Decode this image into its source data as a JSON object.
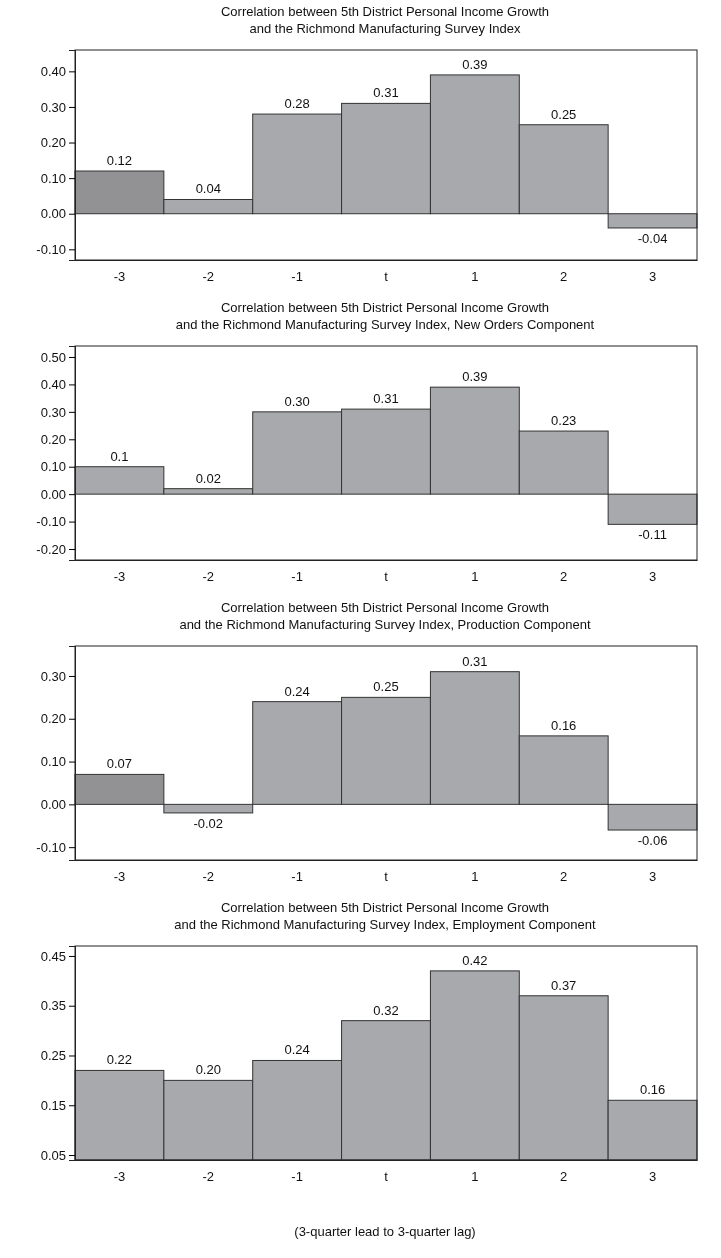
{
  "chart_data": [
    {
      "type": "bar",
      "title": "Correlation between 5th District Personal Income Growth\nand the Richmond Manufacturing Survey Index",
      "categories": [
        "-3",
        "-2",
        "-1",
        "t",
        "1",
        "2",
        "3"
      ],
      "values": [
        0.12,
        0.04,
        0.28,
        0.31,
        0.39,
        0.25,
        -0.04
      ],
      "value_labels": [
        "0.12",
        "0.04",
        "0.28",
        "0.31",
        "0.39",
        "0.25",
        "-0.04"
      ],
      "colors": [
        "#929294",
        "#a7a9ac",
        "#a7a9ac",
        "#a7a9ac",
        "#a7a9ac",
        "#a7a9ac",
        "#a7a9ac"
      ],
      "ylim": [
        -0.13,
        0.46
      ],
      "yticks": [
        {
          "value": -0.1,
          "label": "-0.10"
        },
        {
          "value": 0,
          "label": "0.00"
        },
        {
          "value": 0.1,
          "label": "0.10"
        },
        {
          "value": 0.2,
          "label": "0.20"
        },
        {
          "value": 0.3,
          "label": "0.30"
        },
        {
          "value": 0.4,
          "label": "0.40"
        }
      ],
      "grid": false
    },
    {
      "type": "bar",
      "title": "Correlation between 5th District Personal Income Growth\nand the Richmond Manufacturing Survey Index, New Orders Component",
      "categories": [
        "-3",
        "-2",
        "-1",
        "t",
        "1",
        "2",
        "3"
      ],
      "values": [
        0.1,
        0.02,
        0.3,
        0.31,
        0.39,
        0.23,
        -0.11
      ],
      "value_labels": [
        "0.1",
        "0.02",
        "0.30",
        "0.31",
        "0.39",
        "0.23",
        "-0.11"
      ],
      "colors": [
        "#a7a9ac",
        "#a7a9ac",
        "#a7a9ac",
        "#a7a9ac",
        "#a7a9ac",
        "#a7a9ac",
        "#a7a9ac"
      ],
      "ylim": [
        -0.24,
        0.54
      ],
      "yticks": [
        {
          "value": -0.2,
          "label": "-0.20"
        },
        {
          "value": -0.1,
          "label": "-0.10"
        },
        {
          "value": 0,
          "label": "0.00"
        },
        {
          "value": 0.1,
          "label": "0.10"
        },
        {
          "value": 0.2,
          "label": "0.20"
        },
        {
          "value": 0.3,
          "label": "0.30"
        },
        {
          "value": 0.4,
          "label": "0.40"
        },
        {
          "value": 0.5,
          "label": "0.50"
        }
      ],
      "grid": false
    },
    {
      "type": "bar",
      "title": "Correlation between 5th District Personal Income Growth\nand the Richmond Manufacturing Survey Index, Production Component",
      "categories": [
        "-3",
        "-2",
        "-1",
        "t",
        "1",
        "2",
        "3"
      ],
      "values": [
        0.07,
        -0.02,
        0.24,
        0.25,
        0.31,
        0.16,
        -0.06
      ],
      "value_labels": [
        "0.07",
        "-0.02",
        "0.24",
        "0.25",
        "0.31",
        "0.16",
        "-0.06"
      ],
      "colors": [
        "#929294",
        "#a7a9ac",
        "#a7a9ac",
        "#a7a9ac",
        "#a7a9ac",
        "#a7a9ac",
        "#a7a9ac"
      ],
      "ylim": [
        -0.13,
        0.37
      ],
      "yticks": [
        {
          "value": -0.1,
          "label": "-0.10"
        },
        {
          "value": 0,
          "label": "0.00"
        },
        {
          "value": 0.1,
          "label": "0.10"
        },
        {
          "value": 0.2,
          "label": "0.20"
        },
        {
          "value": 0.3,
          "label": "0.30"
        }
      ],
      "grid": false
    },
    {
      "type": "bar",
      "title": "Correlation between 5th District Personal Income Growth\nand the Richmond Manufacturing Survey Index, Employment Component",
      "categories": [
        "-3",
        "-2",
        "-1",
        "t",
        "1",
        "2",
        "3"
      ],
      "values": [
        0.22,
        0.2,
        0.24,
        0.32,
        0.42,
        0.37,
        0.16
      ],
      "value_labels": [
        "0.22",
        "0.20",
        "0.24",
        "0.32",
        "0.42",
        "0.37",
        "0.16"
      ],
      "colors": [
        "#a7a9ac",
        "#a7a9ac",
        "#a7a9ac",
        "#a7a9ac",
        "#a7a9ac",
        "#a7a9ac",
        "#a7a9ac"
      ],
      "ylim": [
        0.04,
        0.47
      ],
      "yticks": [
        0.05,
        0.15,
        0.25,
        0.35,
        0.45
      ],
      "grid": false,
      "annotations": [
        "(3-quarter lead to 3-quarter lag)"
      ]
    }
  ]
}
